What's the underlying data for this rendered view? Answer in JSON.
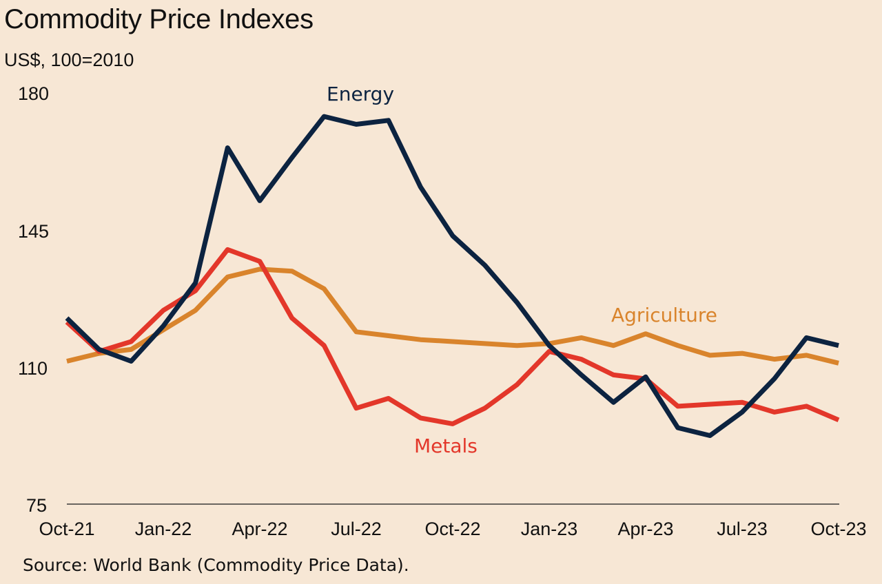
{
  "chart_data": {
    "type": "line",
    "title": "Commodity Price Indexes",
    "subtitle": "US$, 100=2010",
    "source": "Source: World Bank (Commodity Price Data).",
    "xlabel": "",
    "ylabel": "",
    "ylim": [
      75,
      180
    ],
    "yticks": [
      "180",
      "145",
      "110",
      "75"
    ],
    "ytick_values": [
      180,
      145,
      110,
      75
    ],
    "xtick_labels": [
      "Oct-21",
      "Jan-22",
      "Apr-22",
      "Jul-22",
      "Oct-22",
      "Jan-23",
      "Apr-23",
      "Jul-23",
      "Oct-23"
    ],
    "xtick_index": [
      0,
      3,
      6,
      9,
      12,
      15,
      18,
      21,
      24
    ],
    "x": [
      "Oct-21",
      "Nov-21",
      "Dec-21",
      "Jan-22",
      "Feb-22",
      "Mar-22",
      "Apr-22",
      "May-22",
      "Jun-22",
      "Jul-22",
      "Aug-22",
      "Sep-22",
      "Oct-22",
      "Nov-22",
      "Dec-22",
      "Jan-23",
      "Feb-23",
      "Mar-23",
      "Apr-23",
      "May-23",
      "Jun-23",
      "Jul-23",
      "Aug-23",
      "Sep-23",
      "Oct-23"
    ],
    "series": [
      {
        "name": "Energy",
        "color": "#0c2340",
        "values": [
          122.5,
          114.5,
          111.5,
          120.5,
          131.5,
          166,
          152.5,
          163.5,
          174,
          172,
          173,
          156,
          143.5,
          136,
          126.5,
          115.5,
          108,
          101,
          107.5,
          94.5,
          92.5,
          98.5,
          107,
          117.5,
          115.5
        ]
      },
      {
        "name": "Agriculture",
        "color": "#d9842c",
        "values": [
          111.5,
          113.5,
          114.5,
          119.5,
          124.5,
          133,
          135,
          134.5,
          130,
          119,
          118,
          117,
          116.5,
          116,
          115.5,
          116,
          117.5,
          115.5,
          118.5,
          115.5,
          113,
          113.5,
          112,
          113,
          111
        ]
      },
      {
        "name": "Metals",
        "color": "#e3372a",
        "values": [
          121.5,
          114,
          116.5,
          124.5,
          129.5,
          140,
          137,
          122.5,
          115.5,
          99.5,
          102,
          97,
          95.5,
          99.5,
          105.5,
          114,
          112,
          108,
          107,
          100,
          100.5,
          101,
          98.5,
          100,
          96.5
        ]
      }
    ],
    "annotations": [
      {
        "text": "Energy",
        "series": "Energy"
      },
      {
        "text": "Agriculture",
        "series": "Agriculture"
      },
      {
        "text": "Metals",
        "series": "Metals"
      }
    ]
  }
}
